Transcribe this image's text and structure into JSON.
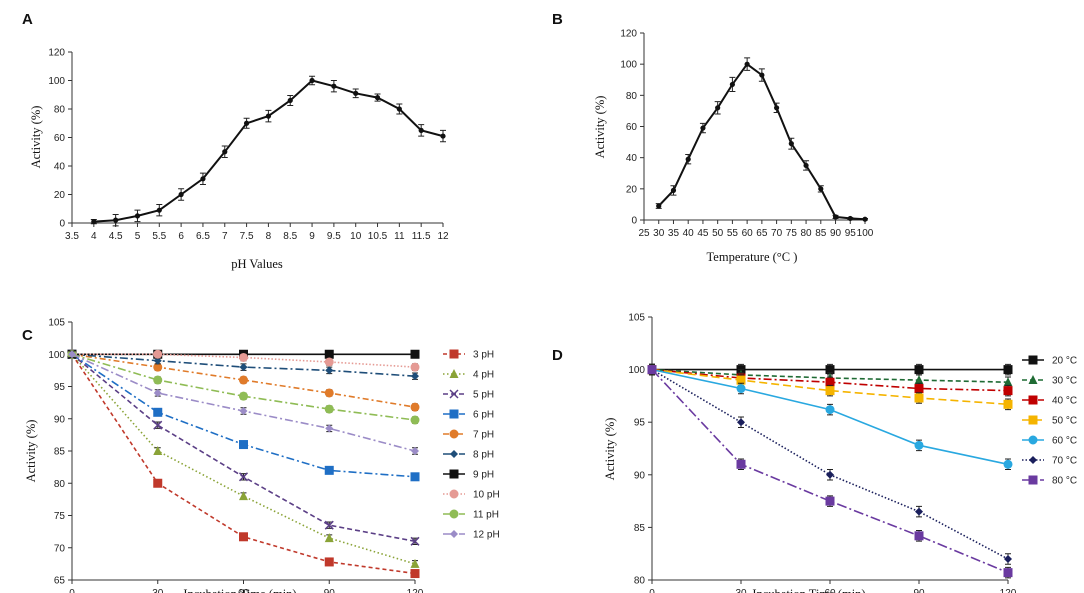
{
  "chart_data": [
    {
      "panel": "A",
      "type": "line",
      "xlabel": "pH Values",
      "ylabel": "Activity  (%)",
      "xlim": [
        3.5,
        12
      ],
      "ylim": [
        0,
        120
      ],
      "xticks": [
        "3.5",
        "4",
        "4.5",
        "5",
        "5.5",
        "6",
        "6.5",
        "7",
        "7.5",
        "8",
        "8.5",
        "9",
        "9.5",
        "10",
        "10.5",
        "11",
        "11.5",
        "12"
      ],
      "yticks": [
        "0",
        "20",
        "40",
        "60",
        "80",
        "100",
        "120"
      ],
      "series": [
        {
          "name": "Activity",
          "color": "#111111",
          "x": [
            4,
            4.5,
            5,
            5.5,
            6,
            6.5,
            7,
            7.5,
            8,
            8.5,
            9,
            9.5,
            10,
            10.5,
            11,
            11.5,
            12
          ],
          "values": [
            1,
            2,
            5,
            9,
            20,
            31,
            50,
            70,
            75,
            86,
            100,
            96,
            91,
            88,
            80,
            65,
            61
          ],
          "err": [
            1.5,
            4,
            4,
            4,
            4,
            4,
            4,
            3.5,
            4,
            3.5,
            3,
            4,
            3,
            2.5,
            3.5,
            4,
            4
          ]
        }
      ]
    },
    {
      "panel": "B",
      "type": "line",
      "xlabel": "Temperature  (°C )",
      "ylabel": "Activity  (%)",
      "xlim": [
        25,
        100
      ],
      "ylim": [
        0,
        120
      ],
      "xticks": [
        "25",
        "30",
        "35",
        "40",
        "45",
        "50",
        "55",
        "60",
        "65",
        "70",
        "75",
        "80",
        "85",
        "90",
        "95",
        "100"
      ],
      "yticks": [
        "0",
        "20",
        "40",
        "60",
        "80",
        "100",
        "120"
      ],
      "series": [
        {
          "name": "Activity",
          "color": "#111111",
          "x": [
            30,
            35,
            40,
            45,
            50,
            55,
            60,
            65,
            70,
            75,
            80,
            85,
            90,
            95,
            100
          ],
          "values": [
            9,
            19,
            39,
            59,
            72,
            87,
            100,
            93,
            72,
            49,
            35,
            20,
            2,
            1,
            0.5
          ],
          "err": [
            1.5,
            3,
            3,
            3,
            4,
            4.5,
            4,
            4,
            3,
            3.5,
            3,
            2,
            1,
            0.5,
            0.5
          ]
        }
      ]
    },
    {
      "panel": "C",
      "type": "line",
      "xlabel": "Incubation  Time  (min)",
      "ylabel": "Activity  (%)",
      "xlim": [
        0,
        120
      ],
      "ylim": [
        65,
        105
      ],
      "xticks": [
        "0",
        "30",
        "60",
        "90",
        "120"
      ],
      "yticks": [
        "65",
        "70",
        "75",
        "80",
        "85",
        "90",
        "95",
        "100",
        "105"
      ],
      "x": [
        0,
        30,
        60,
        90,
        120
      ],
      "series": [
        {
          "name": "3 pH",
          "color": "#c0392b",
          "dash": "4,3",
          "marker": "square",
          "values": [
            100,
            80,
            71.7,
            67.8,
            66
          ]
        },
        {
          "name": "4 pH",
          "color": "#8aa337",
          "dash": "1.5,2.5",
          "marker": "triangle",
          "values": [
            100,
            85,
            78,
            71.5,
            67.5
          ]
        },
        {
          "name": "5 pH",
          "color": "#5b3f86",
          "dash": "5,3",
          "marker": "x",
          "values": [
            100,
            89,
            81,
            73.5,
            71
          ]
        },
        {
          "name": "6 pH",
          "color": "#1f6fc5",
          "dash": "8,3,2,3",
          "marker": "square",
          "values": [
            100,
            91,
            86,
            82,
            81
          ]
        },
        {
          "name": "7 pH",
          "color": "#e07b2a",
          "dash": "6,3,2,3",
          "marker": "circle",
          "values": [
            100,
            98,
            96,
            94,
            91.8
          ]
        },
        {
          "name": "8 pH",
          "color": "#1f4e79",
          "dash": "8,3,2,3",
          "marker": "diamond",
          "values": [
            100,
            99,
            98,
            97.5,
            96.6
          ]
        },
        {
          "name": "9 pH",
          "color": "#111111",
          "dash": "",
          "marker": "square",
          "values": [
            100,
            100,
            100,
            100,
            100
          ]
        },
        {
          "name": "10 pH",
          "color": "#e59a94",
          "dash": "1.5,2",
          "marker": "circle",
          "values": [
            100,
            100,
            99.5,
            98.8,
            98
          ]
        },
        {
          "name": "11 pH",
          "color": "#8fbc55",
          "dash": "8,3,2,3",
          "marker": "circle",
          "values": [
            100,
            96,
            93.5,
            91.5,
            89.8
          ]
        },
        {
          "name": "12 pH",
          "color": "#9b8cc7",
          "dash": "8,3,2,3",
          "marker": "diamond",
          "values": [
            100,
            94,
            91.2,
            88.5,
            85
          ]
        }
      ]
    },
    {
      "panel": "D",
      "type": "line",
      "xlabel": "Incubation  Time  (min)",
      "ylabel": "Activity  (%)",
      "xlim": [
        0,
        120
      ],
      "ylim": [
        80,
        105
      ],
      "xticks": [
        "0",
        "30",
        "60",
        "90",
        "120"
      ],
      "yticks": [
        "80",
        "85",
        "90",
        "95",
        "100",
        "105"
      ],
      "x": [
        0,
        30,
        60,
        90,
        120
      ],
      "series": [
        {
          "name": "20 °C",
          "color": "#111111",
          "dash": "",
          "marker": "square",
          "values": [
            100,
            100,
            100,
            100,
            100
          ]
        },
        {
          "name": "30 °C",
          "color": "#1f6b34",
          "dash": "5,3",
          "marker": "triangle",
          "values": [
            100,
            99.5,
            99.2,
            99,
            98.8
          ]
        },
        {
          "name": "40 °C",
          "color": "#c00000",
          "dash": "8,3,2,3",
          "marker": "square",
          "values": [
            100,
            99.2,
            98.8,
            98.2,
            98
          ]
        },
        {
          "name": "50 °C",
          "color": "#f5b400",
          "dash": "8,4",
          "marker": "square",
          "values": [
            100,
            99,
            98,
            97.3,
            96.7
          ]
        },
        {
          "name": "60 °C",
          "color": "#29a8e0",
          "dash": "",
          "marker": "circle",
          "values": [
            100,
            98.2,
            96.2,
            92.8,
            91
          ]
        },
        {
          "name": "70 °C",
          "color": "#1a1f5c",
          "dash": "1.5,2",
          "marker": "diamond",
          "values": [
            100,
            95,
            90,
            86.5,
            82
          ]
        },
        {
          "name": "80 °C",
          "color": "#6a3aa0",
          "dash": "10,3,2,3",
          "marker": "square",
          "values": [
            100,
            91,
            87.5,
            84.2,
            80.7
          ]
        }
      ]
    }
  ]
}
